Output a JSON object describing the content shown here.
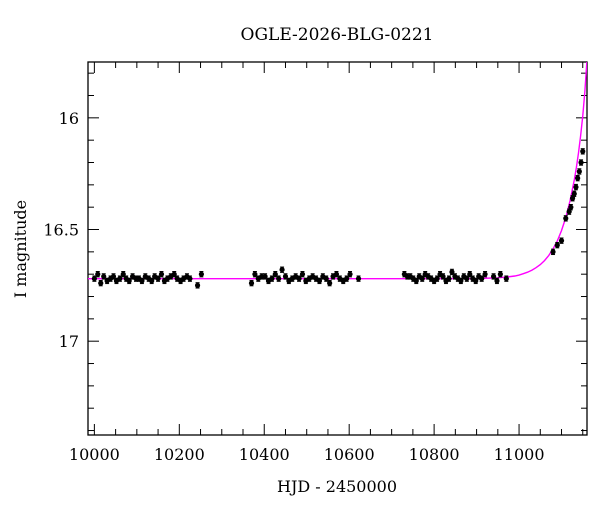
{
  "chart_data": {
    "type": "scatter",
    "title": "OGLE-2026-BLG-0221",
    "xlabel": "HJD - 2450000",
    "ylabel": "I magnitude",
    "xlim": [
      9985,
      11160
    ],
    "ylim": [
      17.42,
      15.75
    ],
    "y_inverted": true,
    "x_ticks": [
      10000,
      10200,
      10400,
      10600,
      10800,
      11000
    ],
    "x_tick_labels": [
      "10000",
      "10200",
      "10400",
      "10600",
      "10800",
      "11000"
    ],
    "x_minor_step": 50,
    "y_ticks": [
      16,
      16.5,
      17
    ],
    "y_tick_labels": [
      "16",
      "16.5",
      "17"
    ],
    "y_minor_step": 0.1,
    "grid": false,
    "series": [
      {
        "kind": "points_with_error_bars",
        "color": "#000000",
        "x": [
          10000,
          10008,
          10015,
          10022,
          10030,
          10038,
          10045,
          10052,
          10060,
          10068,
          10075,
          10082,
          10090,
          10098,
          10105,
          10112,
          10120,
          10128,
          10135,
          10142,
          10150,
          10158,
          10165,
          10172,
          10180,
          10188,
          10195,
          10203,
          10210,
          10218,
          10225,
          10243,
          10252,
          10370,
          10378,
          10386,
          10394,
          10402,
          10410,
          10418,
          10426,
          10434,
          10442,
          10450,
          10458,
          10466,
          10474,
          10482,
          10490,
          10498,
          10506,
          10514,
          10522,
          10530,
          10538,
          10546,
          10554,
          10562,
          10570,
          10578,
          10586,
          10594,
          10602,
          10622,
          10730,
          10737,
          10744,
          10751,
          10758,
          10765,
          10772,
          10779,
          10786,
          10793,
          10800,
          10807,
          10814,
          10821,
          10828,
          10835,
          10842,
          10849,
          10856,
          10863,
          10870,
          10877,
          10884,
          10891,
          10898,
          10905,
          10912,
          10920,
          10940,
          10948,
          10956,
          10970,
          11080,
          11090,
          11100,
          11110,
          11118,
          11122,
          11126,
          11130,
          11134,
          11138,
          11142,
          11146,
          11150
        ],
        "y": [
          16.72,
          16.7,
          16.74,
          16.71,
          16.73,
          16.72,
          16.71,
          16.73,
          16.72,
          16.7,
          16.72,
          16.73,
          16.71,
          16.72,
          16.72,
          16.73,
          16.71,
          16.72,
          16.73,
          16.71,
          16.72,
          16.7,
          16.73,
          16.72,
          16.71,
          16.7,
          16.72,
          16.73,
          16.72,
          16.71,
          16.72,
          16.75,
          16.7,
          16.74,
          16.7,
          16.72,
          16.71,
          16.71,
          16.73,
          16.72,
          16.7,
          16.72,
          16.68,
          16.71,
          16.73,
          16.72,
          16.71,
          16.72,
          16.7,
          16.73,
          16.72,
          16.71,
          16.72,
          16.73,
          16.71,
          16.72,
          16.74,
          16.71,
          16.7,
          16.72,
          16.73,
          16.72,
          16.7,
          16.72,
          16.7,
          16.71,
          16.71,
          16.72,
          16.73,
          16.71,
          16.72,
          16.7,
          16.71,
          16.72,
          16.73,
          16.72,
          16.7,
          16.71,
          16.73,
          16.72,
          16.69,
          16.71,
          16.72,
          16.73,
          16.71,
          16.72,
          16.7,
          16.72,
          16.73,
          16.71,
          16.72,
          16.7,
          16.71,
          16.73,
          16.7,
          16.72,
          16.6,
          16.57,
          16.55,
          16.45,
          16.42,
          16.4,
          16.36,
          16.34,
          16.31,
          16.27,
          16.24,
          16.2,
          16.15
        ],
        "yerr": 0.012
      },
      {
        "kind": "model_curve",
        "color": "#ff00ff",
        "baseline_mag": 16.72,
        "x": [
          9985,
          10100,
          10200,
          10300,
          10400,
          10500,
          10600,
          10700,
          10800,
          10850,
          10900,
          10925,
          10950,
          10970,
          10990,
          11000,
          11010,
          11020,
          11030,
          11040,
          11050,
          11060,
          11070,
          11080,
          11090,
          11100,
          11110,
          11120,
          11130,
          11135,
          11140,
          11145,
          11150,
          11155,
          11160
        ],
        "y": [
          16.72,
          16.72,
          16.72,
          16.72,
          16.72,
          16.72,
          16.72,
          16.72,
          16.72,
          16.72,
          16.72,
          16.718,
          16.716,
          16.713,
          16.708,
          16.704,
          16.698,
          16.691,
          16.682,
          16.671,
          16.657,
          16.639,
          16.616,
          16.587,
          16.551,
          16.505,
          16.446,
          16.372,
          16.278,
          16.222,
          16.157,
          16.081,
          15.99,
          15.88,
          15.74
        ]
      }
    ]
  }
}
